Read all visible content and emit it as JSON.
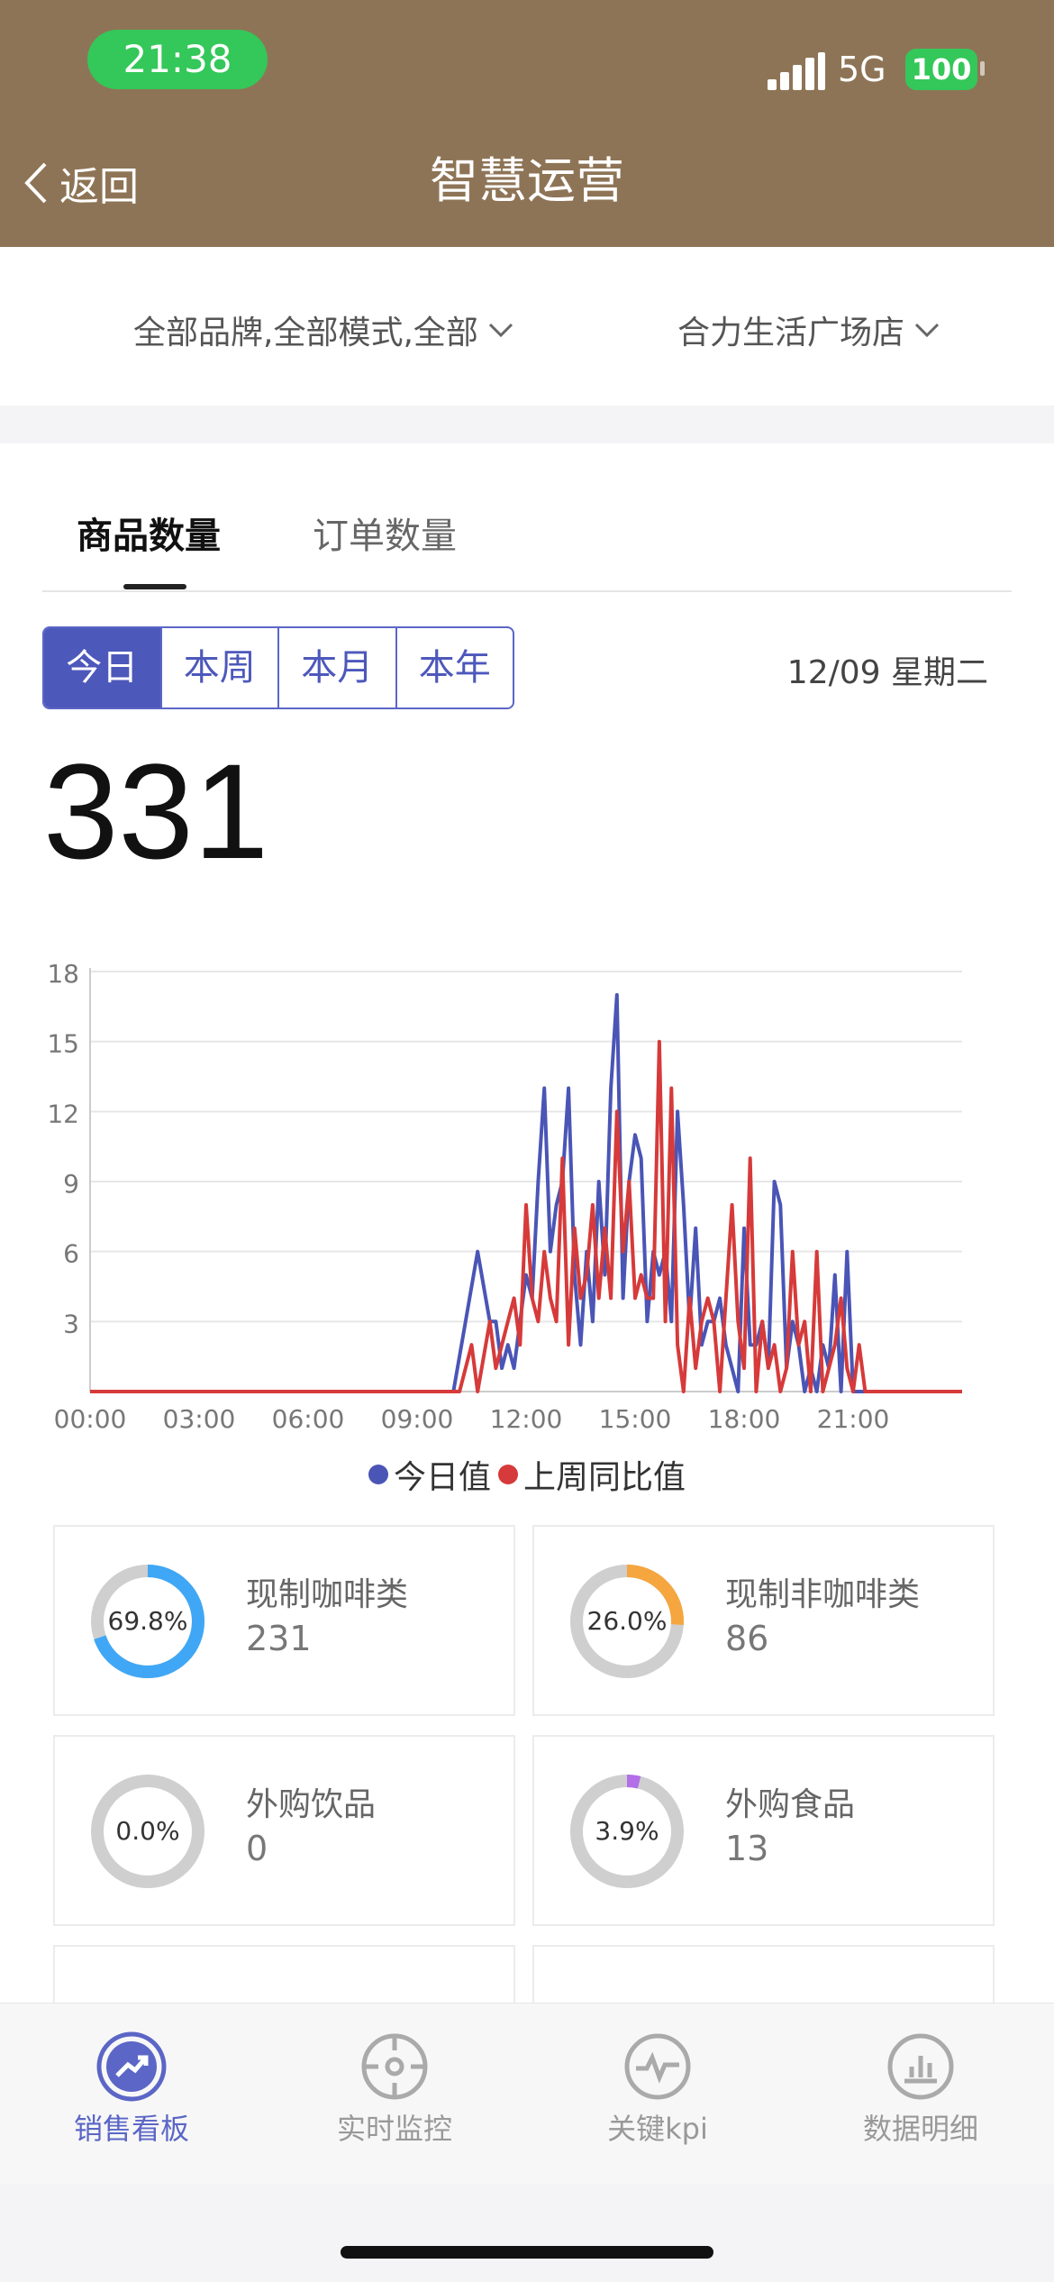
{
  "status_bar": {
    "time": "21:38",
    "network": "5G",
    "battery": "100"
  },
  "header": {
    "back_label": "返回",
    "title": "智慧运营"
  },
  "filters": {
    "brand_mode": "全部品牌,全部模式,全部",
    "store": "合力生活广场店"
  },
  "tabs": [
    {
      "label": "商品数量",
      "active": true
    },
    {
      "label": "订单数量",
      "active": false
    }
  ],
  "periods": [
    {
      "label": "今日",
      "active": true
    },
    {
      "label": "本周"
    },
    {
      "label": "本月"
    },
    {
      "label": "本年"
    }
  ],
  "date_label": "12/09 星期二",
  "total_value": "331",
  "chart_data": {
    "type": "line",
    "x_ticks": [
      "00:00",
      "03:00",
      "06:00",
      "09:00",
      "12:00",
      "15:00",
      "18:00",
      "21:00"
    ],
    "y_ticks": [
      3,
      6,
      9,
      12,
      15,
      18
    ],
    "ylim": [
      0,
      18
    ],
    "xlim_hours": [
      0,
      24
    ],
    "grid": "horizontal",
    "legend_position": "bottom",
    "series": [
      {
        "name": "今日值",
        "color": "#4a55b6",
        "x": [
          "00:00",
          "10:00",
          "10:20",
          "10:40",
          "11:00",
          "11:10",
          "11:20",
          "11:30",
          "11:40",
          "11:50",
          "12:00",
          "12:10",
          "12:20",
          "12:30",
          "12:40",
          "12:50",
          "13:00",
          "13:10",
          "13:20",
          "13:30",
          "13:40",
          "13:50",
          "14:00",
          "14:10",
          "14:20",
          "14:30",
          "14:40",
          "14:50",
          "15:00",
          "15:10",
          "15:20",
          "15:30",
          "15:40",
          "15:50",
          "16:00",
          "16:10",
          "16:20",
          "16:30",
          "16:40",
          "16:50",
          "17:00",
          "17:10",
          "17:20",
          "17:30",
          "17:40",
          "17:50",
          "18:00",
          "18:10",
          "18:20",
          "18:30",
          "18:40",
          "18:50",
          "19:00",
          "19:10",
          "19:20",
          "19:30",
          "19:40",
          "19:50",
          "20:00",
          "20:10",
          "20:20",
          "20:30",
          "20:40",
          "20:50",
          "21:00",
          "21:10",
          "21:20",
          "21:30",
          "21:40",
          "24:00"
        ],
        "y": [
          0,
          0,
          3,
          6,
          3,
          3,
          1,
          2,
          1,
          3,
          5,
          4,
          9,
          13,
          6,
          8,
          9,
          13,
          5,
          2,
          6,
          3,
          9,
          5,
          13,
          17,
          4,
          9,
          11,
          10,
          3,
          6,
          5,
          6,
          3,
          12,
          8,
          3,
          7,
          2,
          3,
          3,
          4,
          2,
          1,
          0,
          7,
          2,
          2,
          3,
          1,
          9,
          8,
          1,
          3,
          2,
          0,
          1,
          0,
          2,
          1,
          5,
          0,
          6,
          0,
          0,
          0,
          0,
          0,
          0
        ]
      },
      {
        "name": "上周同比值",
        "color": "#d63a3a",
        "x": [
          "00:00",
          "10:10",
          "10:30",
          "10:40",
          "11:00",
          "11:10",
          "11:20",
          "11:30",
          "11:40",
          "11:50",
          "12:00",
          "12:10",
          "12:20",
          "12:30",
          "12:40",
          "12:50",
          "13:00",
          "13:10",
          "13:20",
          "13:30",
          "13:40",
          "13:50",
          "14:00",
          "14:10",
          "14:20",
          "14:30",
          "14:40",
          "14:50",
          "15:00",
          "15:10",
          "15:20",
          "15:30",
          "15:40",
          "15:50",
          "16:00",
          "16:10",
          "16:20",
          "16:30",
          "16:40",
          "16:50",
          "17:00",
          "17:10",
          "17:20",
          "17:30",
          "17:40",
          "17:50",
          "18:00",
          "18:10",
          "18:20",
          "18:30",
          "18:40",
          "18:50",
          "19:00",
          "19:10",
          "19:20",
          "19:30",
          "19:40",
          "19:50",
          "20:00",
          "20:10",
          "20:20",
          "20:30",
          "20:40",
          "20:50",
          "21:00",
          "21:10",
          "21:20",
          "21:30",
          "24:00"
        ],
        "y": [
          0,
          0,
          2,
          0,
          3,
          1,
          2,
          3,
          4,
          2,
          8,
          4,
          3,
          6,
          4,
          3,
          10,
          2,
          7,
          4,
          5,
          8,
          4,
          7,
          4,
          12,
          6,
          9,
          4,
          5,
          4,
          4,
          15,
          3,
          13,
          2,
          0,
          4,
          1,
          3,
          4,
          3,
          0,
          4,
          8,
          3,
          1,
          10,
          0,
          3,
          1,
          2,
          0,
          1,
          6,
          2,
          3,
          0,
          6,
          0,
          1,
          2,
          4,
          1,
          0,
          2,
          0,
          0,
          0
        ]
      }
    ]
  },
  "categories": [
    {
      "name": "现制咖啡类",
      "value": "231",
      "pct_label": "69.8%",
      "pct": 69.8,
      "color": "#3fa7f5"
    },
    {
      "name": "现制非咖啡类",
      "value": "86",
      "pct_label": "26.0%",
      "pct": 26.0,
      "color": "#f5a63f"
    },
    {
      "name": "外购饮品",
      "value": "0",
      "pct_label": "0.0%",
      "pct": 0.0,
      "color": "#aaaaaa"
    },
    {
      "name": "外购食品",
      "value": "13",
      "pct_label": "3.9%",
      "pct": 3.9,
      "color": "#b36ee8"
    }
  ],
  "nav": [
    {
      "label": "销售看板",
      "icon": "trend-up-icon",
      "active": true
    },
    {
      "label": "实时监控",
      "icon": "target-icon",
      "active": false
    },
    {
      "label": "关键kpi",
      "icon": "pulse-icon",
      "active": false
    },
    {
      "label": "数据明细",
      "icon": "bar-chart-icon",
      "active": false
    }
  ],
  "colors": {
    "header_bg": "#8e7456",
    "accent": "#4d58bb",
    "active_nav": "#5b66c6"
  }
}
